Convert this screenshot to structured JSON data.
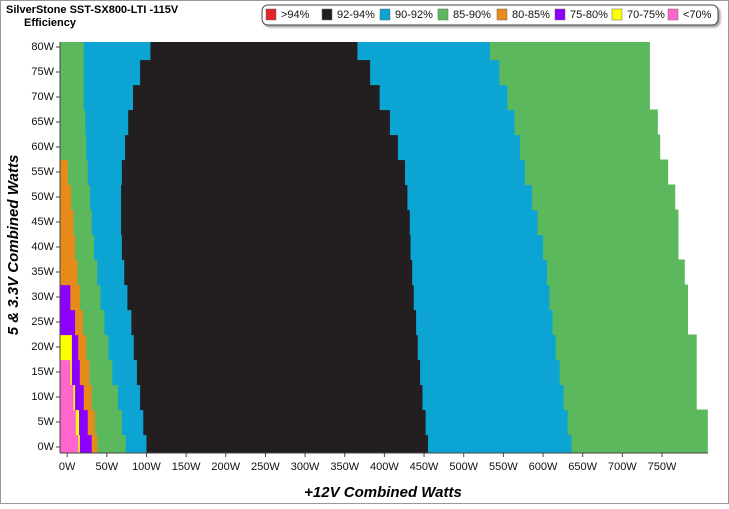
{
  "chart_data": {
    "type": "region",
    "title": "SilverStone SST-SX800-LTI -115V",
    "subtitle": "Efficiency",
    "x_label": "+12V Combined Watts",
    "y_label": "5 & 3.3V Combined Watts",
    "xlim": [
      -9,
      808
    ],
    "ylim": [
      -1.2,
      81
    ],
    "xticks": [
      {
        "value": 0,
        "label": "0W"
      },
      {
        "value": 50,
        "label": "50W"
      },
      {
        "value": 100,
        "label": "100W"
      },
      {
        "value": 150,
        "label": "150W"
      },
      {
        "value": 200,
        "label": "200W"
      },
      {
        "value": 250,
        "label": "250W"
      },
      {
        "value": 300,
        "label": "300W"
      },
      {
        "value": 350,
        "label": "350W"
      },
      {
        "value": 400,
        "label": "400W"
      },
      {
        "value": 450,
        "label": "450W"
      },
      {
        "value": 500,
        "label": "500W"
      },
      {
        "value": 550,
        "label": "550W"
      },
      {
        "value": 600,
        "label": "600W"
      },
      {
        "value": 650,
        "label": "650W"
      },
      {
        "value": 700,
        "label": "700W"
      },
      {
        "value": 750,
        "label": "750W"
      }
    ],
    "yticks": [
      {
        "value": 0,
        "label": "0W"
      },
      {
        "value": 5,
        "label": "5W"
      },
      {
        "value": 10,
        "label": "10W"
      },
      {
        "value": 15,
        "label": "15W"
      },
      {
        "value": 20,
        "label": "20W"
      },
      {
        "value": 25,
        "label": "25W"
      },
      {
        "value": 30,
        "label": "30W"
      },
      {
        "value": 35,
        "label": "35W"
      },
      {
        "value": 40,
        "label": "40W"
      },
      {
        "value": 45,
        "label": "45W"
      },
      {
        "value": 50,
        "label": "50W"
      },
      {
        "value": 55,
        "label": "55W"
      },
      {
        "value": 60,
        "label": "60W"
      },
      {
        "value": 65,
        "label": "65W"
      },
      {
        "value": 70,
        "label": "70W"
      },
      {
        "value": 75,
        "label": "75W"
      },
      {
        "value": 80,
        "label": "80W"
      }
    ],
    "series": [
      {
        "name": ">94%",
        "color": "#e3262b"
      },
      {
        "name": "92-94%",
        "color": "#231f20"
      },
      {
        "name": "90-92%",
        "color": "#0ca4d2"
      },
      {
        "name": "85-90%",
        "color": "#5cb85c"
      },
      {
        "name": "80-85%",
        "color": "#e88a1a"
      },
      {
        "name": "75-80%",
        "color": "#8b00ff"
      },
      {
        "name": "70-75%",
        "color": "#ffff00"
      },
      {
        "name": "<70%",
        "color": "#ff66cc"
      }
    ],
    "y": [
      0,
      5,
      10,
      15,
      20,
      25,
      30,
      35,
      40,
      45,
      50,
      55,
      60,
      65,
      70,
      75,
      80
    ],
    "regions": [
      {
        "color": "#ff66cc",
        "right": [
          14,
          11,
          8,
          4,
          -9,
          -9,
          -9,
          -9,
          -9,
          -9,
          -9,
          -9,
          -9,
          -9,
          -9,
          -9,
          -9
        ]
      },
      {
        "color": "#ffff00",
        "right": [
          16,
          15,
          10,
          6,
          6,
          -9,
          -9,
          -9,
          -9,
          -9,
          -9,
          -9,
          -9,
          -9,
          -9,
          -9,
          -9
        ]
      },
      {
        "color": "#8b00ff",
        "right": [
          31,
          26,
          21,
          16,
          14,
          10,
          4,
          -9,
          -9,
          -9,
          -9,
          -9,
          -9,
          -9,
          -9,
          -9,
          -9
        ]
      },
      {
        "color": "#e88a1a",
        "right": [
          38,
          35,
          31,
          28,
          24,
          20,
          16,
          13,
          10,
          8,
          5,
          1,
          -9,
          -9,
          -9,
          -9,
          -9
        ]
      },
      {
        "color": "#5cb85c",
        "right": [
          74,
          69,
          64,
          57,
          52,
          47,
          42,
          38,
          34,
          31,
          29,
          26,
          24,
          23,
          21,
          21,
          21
        ]
      },
      {
        "color": "#0ca4d2",
        "right": [
          100,
          96,
          92,
          88,
          84,
          81,
          76,
          72,
          69,
          68,
          68,
          69,
          73,
          77,
          83,
          92,
          105
        ]
      },
      {
        "color": "#231f20",
        "right": [
          455,
          452,
          448,
          445,
          442,
          440,
          437,
          435,
          433,
          432,
          429,
          426,
          417,
          407,
          394,
          382,
          366
        ]
      },
      {
        "color": "#0ca4d2",
        "right": [
          636,
          631,
          626,
          621,
          616,
          612,
          608,
          605,
          600,
          593,
          586,
          577,
          571,
          564,
          555,
          545,
          533
        ]
      },
      {
        "color": "#5cb85c",
        "right": [
          807,
          807,
          793,
          793,
          793,
          782,
          782,
          778,
          770,
          770,
          766,
          757,
          747,
          744,
          734,
          734,
          734
        ]
      }
    ]
  }
}
